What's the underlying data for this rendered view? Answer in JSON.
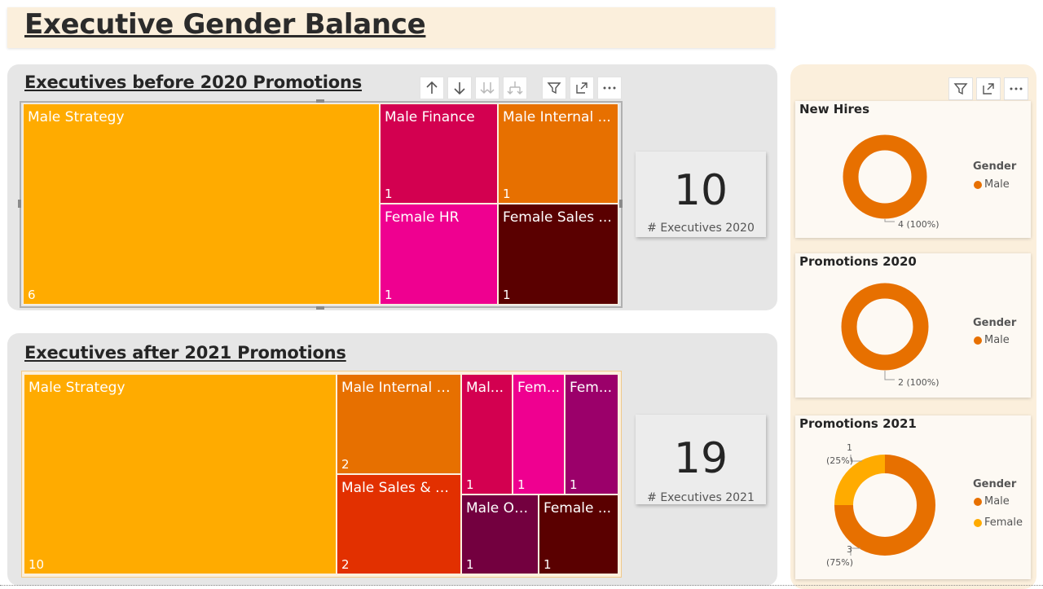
{
  "page": {
    "title": "Executive Gender Balance"
  },
  "colors": {
    "strategy": "#ffab00",
    "finance": "#d30050",
    "internal": "#e77000",
    "hr": "#ef0090",
    "sales_female": "#5a0000",
    "sales_male": "#e23000",
    "ops": "#73003f",
    "other_female": "#9b006a",
    "male_dot": "#e77000",
    "female_dot": "#ffab00"
  },
  "panel_2020": {
    "title": "Executives before 2020 Promotions",
    "tiles": [
      {
        "label": "Male Strategy",
        "value": "6"
      },
      {
        "label": "Male Finance",
        "value": "1"
      },
      {
        "label": "Male Internal ...",
        "value": "1"
      },
      {
        "label": "Female HR",
        "value": "1"
      },
      {
        "label": "Female Sales ...",
        "value": "1"
      }
    ],
    "card": {
      "value": "10",
      "caption": "# Executives 2020"
    }
  },
  "panel_2021": {
    "title": "Executives after 2021 Promotions",
    "tiles": [
      {
        "label": "Male Strategy",
        "value": "10"
      },
      {
        "label": "Male Internal S...",
        "value": "2"
      },
      {
        "label": "Male Sales & M...",
        "value": "2"
      },
      {
        "label": "Mal...",
        "value": "1"
      },
      {
        "label": "Fem...",
        "value": "1"
      },
      {
        "label": "Fem...",
        "value": "1"
      },
      {
        "label": "Male Op...",
        "value": "1"
      },
      {
        "label": "Female ...",
        "value": "1"
      }
    ],
    "card": {
      "value": "19",
      "caption": "# Executives 2021"
    }
  },
  "toolbar_icons": [
    "arrow-up-icon",
    "arrow-down-icon",
    "double-arrow-down-icon",
    "expand-hierarchy-icon",
    "filter-icon",
    "focus-mode-icon",
    "more-options-icon"
  ],
  "donuts": {
    "legend_title": "Gender",
    "new_hires": {
      "title": "New Hires",
      "legend": [
        "Male"
      ],
      "label": "4 (100%)",
      "slices": [
        {
          "name": "Male",
          "value": 4
        }
      ]
    },
    "promotions_2020": {
      "title": "Promotions 2020",
      "legend": [
        "Male"
      ],
      "label": "2 (100%)",
      "slices": [
        {
          "name": "Male",
          "value": 2
        }
      ]
    },
    "promotions_2021": {
      "title": "Promotions 2021",
      "legend": [
        "Male",
        "Female"
      ],
      "label_female_count": "1",
      "label_female_pct": "(25%)",
      "label_male_count": "3",
      "label_male_pct": "(75%)",
      "slices": [
        {
          "name": "Male",
          "value": 3
        },
        {
          "name": "Female",
          "value": 1
        }
      ]
    }
  }
}
